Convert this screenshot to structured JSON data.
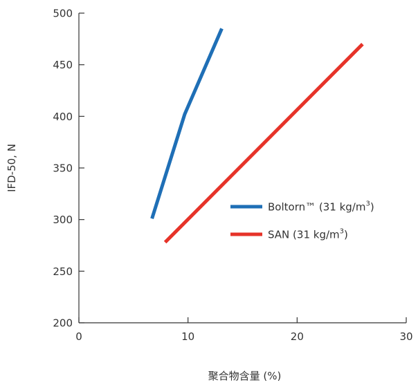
{
  "chart_data": {
    "type": "line",
    "title": "",
    "xlabel": "聚合物含量 (%)",
    "ylabel": "IFD-50, N",
    "xlim": [
      0,
      30
    ],
    "ylim": [
      200,
      500
    ],
    "x_ticks": [
      0,
      10,
      20,
      30
    ],
    "y_ticks": [
      200,
      250,
      300,
      350,
      400,
      450,
      500
    ],
    "grid": false,
    "legend_position": "center-right",
    "series": [
      {
        "name": "Boltorn™ (31 kg/m³)",
        "label_main": "Boltorn™ (31 kg/m",
        "label_sup": "3",
        "label_end": ")",
        "color": "#1f6fb6",
        "points": [
          [
            6.7,
            301
          ],
          [
            9.7,
            402
          ],
          [
            13.1,
            485
          ]
        ]
      },
      {
        "name": "SAN (31 kg/m³)",
        "label_main": "SAN (31 kg/m",
        "label_sup": "3",
        "label_end": ")",
        "color": "#e63329",
        "points": [
          [
            7.9,
            278
          ],
          [
            26.0,
            470
          ]
        ]
      }
    ]
  }
}
